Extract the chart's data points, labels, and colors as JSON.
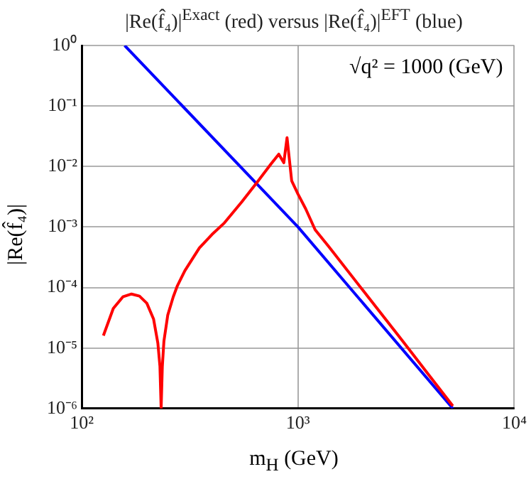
{
  "chart_data": {
    "type": "line",
    "title": "|Re(f̂₄)|$^{Exact}$ (red) versus |Re(f̂₄)|$^{EFT}$ (blue)",
    "xlabel": "m$_{H}$ (GeV)",
    "ylabel": "|Re(f̂₄)|",
    "annotations": [
      "√q² = 1000 (GeV)"
    ],
    "log": "xy",
    "grid": true,
    "xlim": [
      100,
      10000
    ],
    "ylim": [
      1e-06,
      1
    ],
    "xticks": [
      {
        "value": 100,
        "label": "10²"
      },
      {
        "value": 1000,
        "label": "10³"
      },
      {
        "value": 10000,
        "label": "10⁴"
      }
    ],
    "yticks": [
      {
        "value": 1e-06,
        "label": "10⁻⁶"
      },
      {
        "value": 1e-05,
        "label": "10⁻⁵"
      },
      {
        "value": 0.0001,
        "label": "10⁻⁴"
      },
      {
        "value": 0.001,
        "label": "10⁻³"
      },
      {
        "value": 0.01,
        "label": "10⁻²"
      },
      {
        "value": 0.1,
        "label": "10⁻¹"
      },
      {
        "value": 1,
        "label": "10⁰"
      }
    ],
    "series": [
      {
        "color": "#ff0000",
        "x": [
          126,
          140,
          155,
          170,
          185,
          200,
          215,
          225,
          230,
          233,
          236,
          240,
          250,
          265,
          277,
          300,
          350,
          400,
          457,
          550,
          650,
          750,
          815,
          860,
          890,
          935,
          1000,
          1085,
          1200,
          1390,
          2000,
          3000,
          4000,
          5200
        ],
        "values": [
          1.6e-05,
          4.5e-05,
          7e-05,
          7.8e-05,
          7.2e-05,
          5.5e-05,
          3e-05,
          1.2e-05,
          5e-06,
          1e-06,
          5e-06,
          1.3e-05,
          3.5e-05,
          7e-05,
          0.000107,
          0.00019,
          0.00045,
          0.00075,
          0.00117,
          0.0026,
          0.0056,
          0.011,
          0.016,
          0.0115,
          0.03,
          0.0058,
          0.0035,
          0.002,
          0.0009,
          0.00047,
          8.9e-05,
          1.4e-05,
          3.7e-06,
          1.1e-06
        ]
      },
      {
        "color": "#0000ff",
        "x": [
          158,
          1000,
          5200
        ],
        "values": [
          1,
          0.001,
          1e-06
        ]
      }
    ]
  }
}
